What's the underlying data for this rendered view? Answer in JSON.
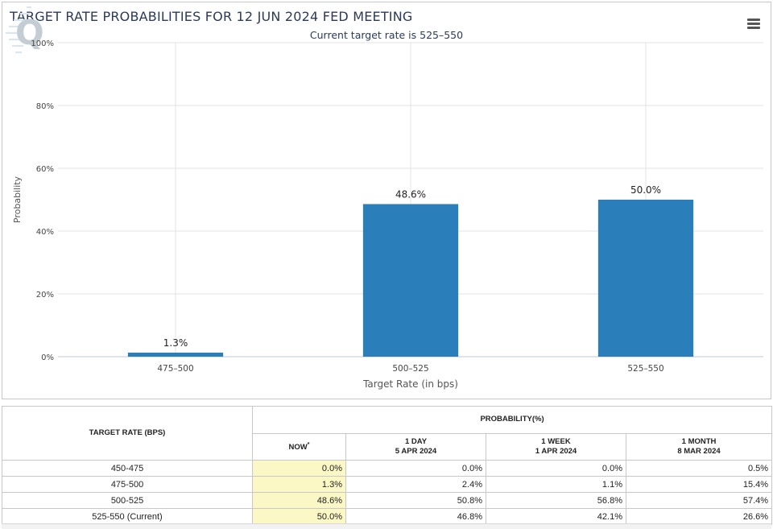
{
  "chart_data": {
    "type": "bar",
    "title": "TARGET RATE PROBABILITIES FOR 12 JUN 2024 FED MEETING",
    "subtitle": "Current target rate is 525–550",
    "xlabel": "Target Rate (in bps)",
    "ylabel": "Probability",
    "categories": [
      "475–500",
      "500–525",
      "525–550"
    ],
    "values": [
      1.3,
      48.6,
      50.0
    ],
    "data_labels": [
      "1.3%",
      "48.6%",
      "50.0%"
    ],
    "ylim": [
      0,
      100
    ],
    "yticks": [
      0,
      20,
      40,
      60,
      80,
      100
    ],
    "ytick_labels": [
      "0%",
      "20%",
      "40%",
      "60%",
      "80%",
      "100%"
    ],
    "grid": true,
    "legend": "none",
    "bar_color": "#2a7fba"
  },
  "table": {
    "rate_header": "TARGET RATE (BPS)",
    "prob_header": "PROBABILITY(%)",
    "columns": [
      {
        "line1": "NOW",
        "line2": "",
        "star": "*"
      },
      {
        "line1": "1 DAY",
        "line2": "5 APR 2024",
        "star": ""
      },
      {
        "line1": "1 WEEK",
        "line2": "1 APR 2024",
        "star": ""
      },
      {
        "line1": "1 MONTH",
        "line2": "8 MAR 2024",
        "star": ""
      }
    ],
    "rows": [
      {
        "rate": "450-475",
        "values": [
          "0.0%",
          "0.0%",
          "0.0%",
          "0.5%"
        ]
      },
      {
        "rate": "475-500",
        "values": [
          "1.3%",
          "2.4%",
          "1.1%",
          "15.4%"
        ]
      },
      {
        "rate": "500-525",
        "values": [
          "48.6%",
          "50.8%",
          "56.8%",
          "57.4%"
        ]
      },
      {
        "rate": "525-550 (Current)",
        "values": [
          "50.0%",
          "46.8%",
          "42.1%",
          "26.6%"
        ]
      }
    ]
  },
  "icons": {
    "menu": "hamburger-menu-icon",
    "logo": "q-logo-icon"
  }
}
